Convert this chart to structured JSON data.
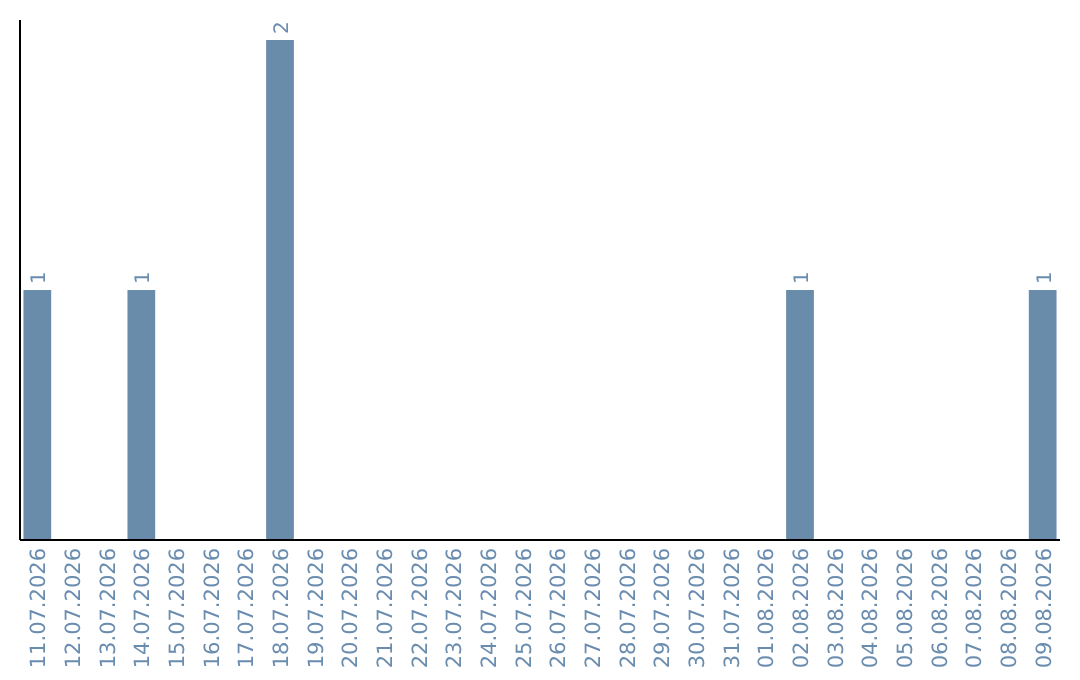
{
  "chart_data": {
    "type": "bar",
    "categories": [
      "11.07.2026",
      "12.07.2026",
      "13.07.2026",
      "14.07.2026",
      "15.07.2026",
      "16.07.2026",
      "17.07.2026",
      "18.07.2026",
      "19.07.2026",
      "20.07.2026",
      "21.07.2026",
      "22.07.2026",
      "23.07.2026",
      "24.07.2026",
      "25.07.2026",
      "26.07.2026",
      "27.07.2026",
      "28.07.2026",
      "29.07.2026",
      "30.07.2026",
      "31.07.2026",
      "01.08.2026",
      "02.08.2026",
      "03.08.2026",
      "04.08.2026",
      "05.08.2026",
      "06.08.2026",
      "07.08.2026",
      "08.08.2026",
      "09.08.2026"
    ],
    "values": [
      1,
      0,
      0,
      1,
      0,
      0,
      0,
      2,
      0,
      0,
      0,
      0,
      0,
      0,
      0,
      0,
      0,
      0,
      0,
      0,
      0,
      0,
      1,
      0,
      0,
      0,
      0,
      0,
      0,
      1
    ],
    "value_labels": [
      "1",
      null,
      null,
      "1",
      null,
      null,
      null,
      "2",
      null,
      null,
      null,
      null,
      null,
      null,
      null,
      null,
      null,
      null,
      null,
      null,
      null,
      null,
      "1",
      null,
      null,
      null,
      null,
      null,
      null,
      "1"
    ],
    "color": "#6a8cab",
    "ylim": [
      0,
      2.08
    ],
    "tick_labels": "x"
  }
}
